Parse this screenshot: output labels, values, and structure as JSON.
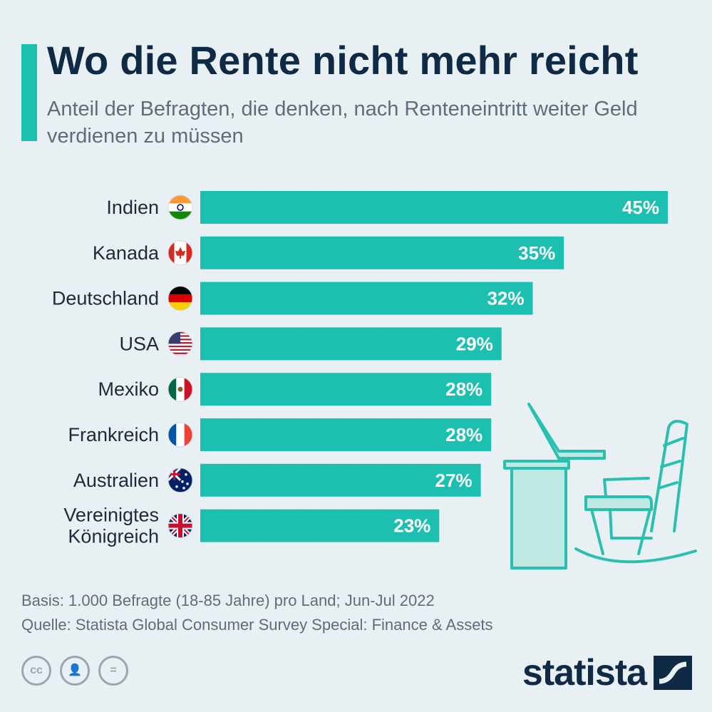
{
  "header": {
    "title": "Wo die Rente nicht mehr reicht",
    "subtitle": "Anteil der Befragten, die denken, nach Renteneintritt weiter Geld verdienen zu müssen"
  },
  "chart_data": {
    "type": "bar",
    "orientation": "horizontal",
    "categories": [
      "Indien",
      "Kanada",
      "Deutschland",
      "USA",
      "Mexiko",
      "Frankreich",
      "Australien",
      "Vereinigtes Königreich"
    ],
    "category_lines": [
      [
        "Indien"
      ],
      [
        "Kanada"
      ],
      [
        "Deutschland"
      ],
      [
        "USA"
      ],
      [
        "Mexiko"
      ],
      [
        "Frankreich"
      ],
      [
        "Australien"
      ],
      [
        "Vereinigtes",
        "Königreich"
      ]
    ],
    "flags": [
      "india-flag-icon",
      "canada-flag-icon",
      "germany-flag-icon",
      "usa-flag-icon",
      "mexico-flag-icon",
      "france-flag-icon",
      "australia-flag-icon",
      "uk-flag-icon"
    ],
    "values": [
      45,
      35,
      32,
      29,
      28,
      28,
      27,
      23
    ],
    "value_labels": [
      "45%",
      "35%",
      "32%",
      "29%",
      "28%",
      "28%",
      "27%",
      "23%"
    ],
    "unit": "%",
    "xlim": [
      0,
      45
    ],
    "grid": false,
    "bar_color": "#1dc0b0"
  },
  "footer": {
    "basis": "Basis: 1.000 Befragte (18-85 Jahre) pro Land; Jun-Jul 2022",
    "source": "Quelle: Statista Global Consumer Survey Special: Finance & Assets"
  },
  "license_icons": [
    {
      "icon": "cc-icon",
      "glyph": "cc"
    },
    {
      "icon": "by-attribution-icon",
      "glyph": "👤"
    },
    {
      "icon": "nd-icon",
      "glyph": "="
    }
  ],
  "brand": {
    "name": "statista",
    "icon": "statista-logo-icon",
    "color": "#0f2a44"
  },
  "colors": {
    "accent": "#1dc0b0",
    "title": "#0f2a44",
    "text": "#5d6d7c",
    "background": "#e9f0f4"
  }
}
